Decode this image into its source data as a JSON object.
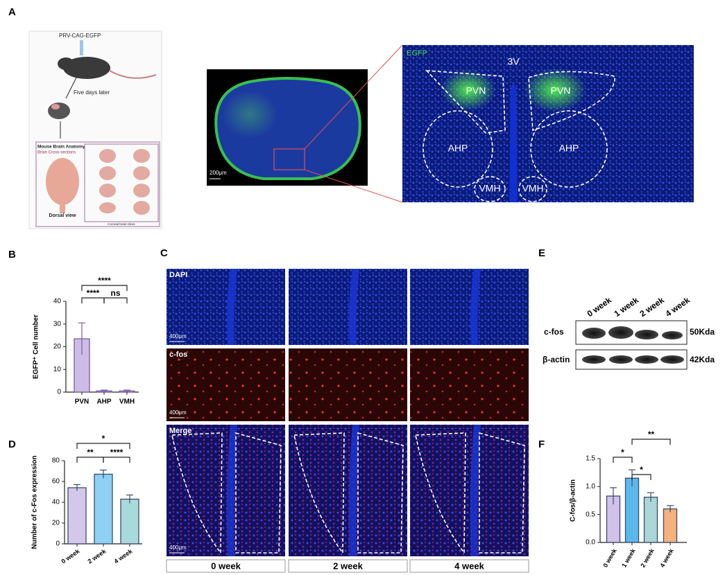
{
  "panels": [
    "A",
    "B",
    "C",
    "D",
    "E",
    "F"
  ],
  "panel_a": {
    "virus": "PRV-CAG-EGFP",
    "step": "Five days later",
    "atlas_title": "Mouse Brain Anatomy",
    "atlas_subtitle": "Brain Cross-sections",
    "dorsal": "Dorsal view",
    "coronal": "Coronal brain slices",
    "scale": "200μm",
    "channel": "EGFP",
    "ventricle": "3V",
    "regions": [
      "PVN",
      "PVN",
      "AHP",
      "AHP",
      "VMH",
      "VMH"
    ]
  },
  "panel_c": {
    "rows": [
      "DAPI",
      "c-fos",
      "Merge"
    ],
    "scale": "400μm",
    "columns": [
      "0 week",
      "2 week",
      "4 week"
    ]
  },
  "panel_e": {
    "lanes": [
      "0 week",
      "1 week",
      "2 week",
      "4 week"
    ],
    "proteins": [
      "c-fos",
      "β-actin"
    ],
    "sizes": [
      "50Kda",
      "42Kda"
    ]
  },
  "chart_data": [
    {
      "type": "bar",
      "ylabel": "EGFP⁺ Cell number",
      "categories": [
        "PVN",
        "AHP",
        "VMH"
      ],
      "values": [
        23.5,
        0.5,
        0.5
      ],
      "errors": [
        7,
        0.4,
        0.4
      ],
      "colors": [
        "#cdbde6",
        "#cdbde6",
        "#cdbde6"
      ],
      "edge_color": "#7a5aa8",
      "ylim": [
        0,
        40
      ],
      "yticks": [
        0,
        10,
        20,
        30,
        40
      ],
      "annotations": [
        "****",
        "****",
        "ns"
      ]
    },
    {
      "type": "bar",
      "ylabel": "Number of c-Fos expression",
      "categories": [
        "0 week",
        "2 week",
        "4 week"
      ],
      "values": [
        54,
        67,
        43
      ],
      "errors": [
        3,
        4,
        4
      ],
      "colors": [
        "#d4c8ea",
        "#8fd0f5",
        "#a8dada"
      ],
      "edge_color": "#3c4a6a",
      "ylim": [
        0,
        80
      ],
      "yticks": [
        0,
        20,
        40,
        60,
        80
      ],
      "annotations": [
        "*",
        "**",
        "****"
      ]
    },
    {
      "type": "bar",
      "ylabel": "C-fos/β-actin",
      "categories": [
        "0 week",
        "1 week",
        "2 week",
        "4 week"
      ],
      "values": [
        0.83,
        1.15,
        0.81,
        0.6
      ],
      "errors": [
        0.15,
        0.15,
        0.08,
        0.06
      ],
      "colors": [
        "#d0c2ea",
        "#5bb8ec",
        "#a9d6d6",
        "#f6b27c"
      ],
      "edge_color": "#3c4a6a",
      "ylim": [
        0,
        1.5
      ],
      "yticks": [
        {
          "value": 0,
          "label": "0.0"
        },
        0.5,
        {
          "value": 1,
          "label": "1.0"
        },
        1.5
      ],
      "annotations": [
        "**",
        "*",
        "*"
      ]
    }
  ]
}
